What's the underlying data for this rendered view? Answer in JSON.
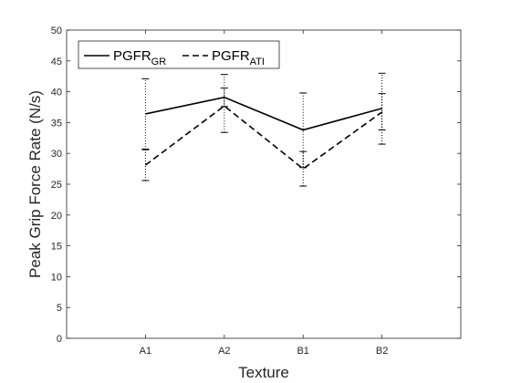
{
  "chart_data": {
    "type": "line",
    "title": "",
    "xlabel": "Texture",
    "ylabel": "Peak Grip Force Rate (N/s)",
    "categories": [
      "A1",
      "A2",
      "B1",
      "B2"
    ],
    "ylim": [
      0,
      50
    ],
    "yticks": [
      "0",
      "5",
      "10",
      "15",
      "20",
      "25",
      "30",
      "35",
      "40",
      "45",
      "50"
    ],
    "grid": false,
    "legend_position": "top-left",
    "series": [
      {
        "name_main": "PGFR",
        "name_sub": "GR",
        "line_style": "solid",
        "color": "#000000",
        "values": [
          36.4,
          39.1,
          33.8,
          37.3
        ],
        "error_low": [
          30.6,
          37.6,
          27.7,
          31.5
        ],
        "error_high": [
          42.1,
          40.6,
          39.8,
          43.0
        ]
      },
      {
        "name_main": "PGFR",
        "name_sub": "ATI",
        "line_style": "dashed",
        "color": "#000000",
        "values": [
          28.1,
          37.7,
          27.5,
          36.7
        ],
        "error_low": [
          25.6,
          33.4,
          24.7,
          33.8
        ],
        "error_high": [
          30.7,
          42.8,
          30.3,
          39.7
        ]
      }
    ]
  }
}
